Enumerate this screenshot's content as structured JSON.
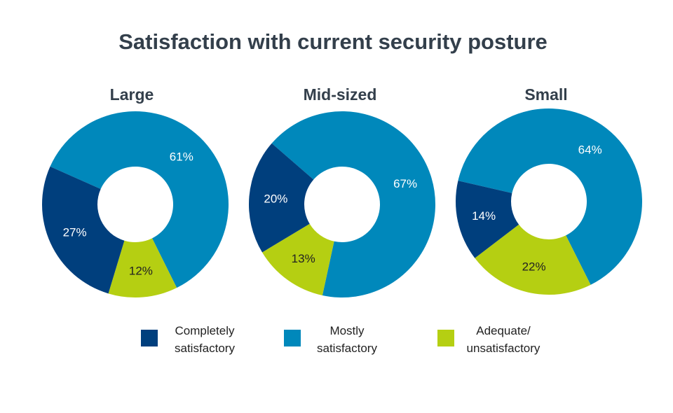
{
  "title": "Satisfaction with current security posture",
  "colors": {
    "completely": "#003F7D",
    "mostly": "#0088BB",
    "adequate": "#B5CF12",
    "title": "#333F4B",
    "label_dark": "#222222",
    "label_light": "#FFFFFF"
  },
  "legend": [
    {
      "key": "completely",
      "label_lines": [
        "Completely",
        "satisfactory"
      ]
    },
    {
      "key": "mostly",
      "label_lines": [
        "Mostly",
        "satisfactory"
      ]
    },
    {
      "key": "adequate",
      "label_lines": [
        "Adequate/",
        "unsatisfactory"
      ]
    }
  ],
  "chart_data": [
    {
      "type": "pie",
      "title": "Large",
      "slices": [
        {
          "key": "mostly",
          "value": 61,
          "label": "61%"
        },
        {
          "key": "adequate",
          "value": 12,
          "label": "12%"
        },
        {
          "key": "completely",
          "value": 27,
          "label": "27%"
        }
      ]
    },
    {
      "type": "pie",
      "title": "Mid-sized",
      "slices": [
        {
          "key": "mostly",
          "value": 67,
          "label": "67%"
        },
        {
          "key": "adequate",
          "value": 13,
          "label": "13%"
        },
        {
          "key": "completely",
          "value": 20,
          "label": "20%"
        }
      ]
    },
    {
      "type": "pie",
      "title": "Small",
      "slices": [
        {
          "key": "mostly",
          "value": 64,
          "label": "64%"
        },
        {
          "key": "adequate",
          "value": 22,
          "label": "22%"
        },
        {
          "key": "completely",
          "value": 14,
          "label": "14%"
        }
      ]
    }
  ]
}
